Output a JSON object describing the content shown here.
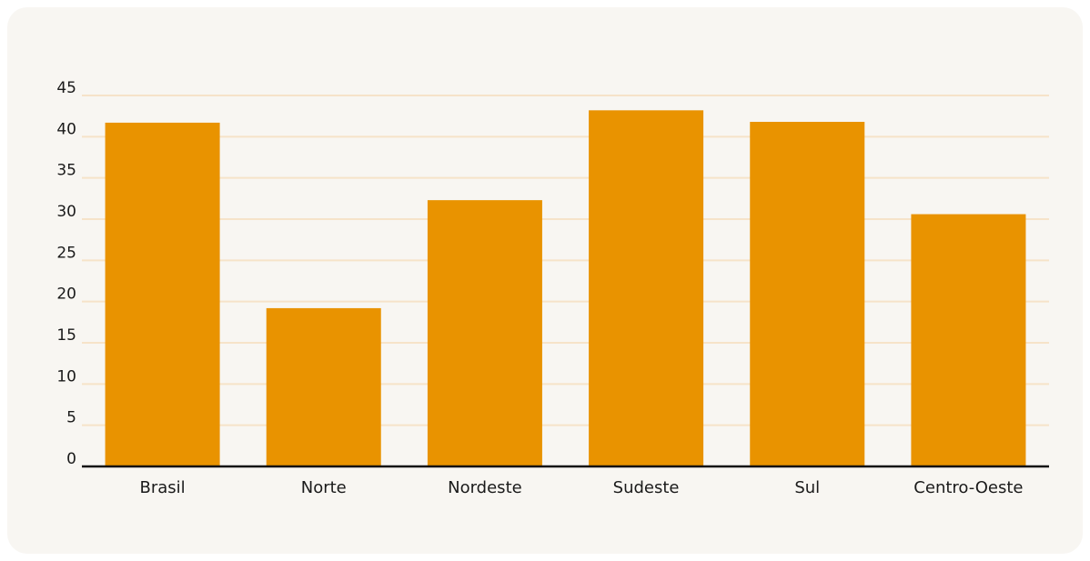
{
  "chart_data": {
    "type": "bar",
    "categories": [
      "Brasil",
      "Norte",
      "Nordeste",
      "Sudeste",
      "Sul",
      "Centro-Oeste"
    ],
    "values": [
      41.7,
      19.2,
      32.3,
      43.2,
      41.8,
      30.6
    ],
    "yticks": [
      0,
      5,
      10,
      15,
      20,
      25,
      30,
      35,
      40,
      45
    ],
    "ylim": [
      0,
      45
    ],
    "grid": true,
    "legend": "none",
    "title": "",
    "xlabel": "",
    "ylabel": "",
    "colors": {
      "bar": "#e99300",
      "grid": "#f6e3c9",
      "axis": "#111111",
      "background": "#f8f6f2"
    }
  }
}
